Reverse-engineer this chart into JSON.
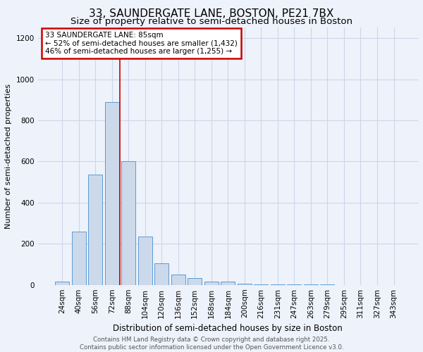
{
  "title1": "33, SAUNDERGATE LANE, BOSTON, PE21 7BX",
  "title2": "Size of property relative to semi-detached houses in Boston",
  "xlabel": "Distribution of semi-detached houses by size in Boston",
  "ylabel": "Number of semi-detached properties",
  "categories": [
    "24sqm",
    "40sqm",
    "56sqm",
    "72sqm",
    "88sqm",
    "104sqm",
    "120sqm",
    "136sqm",
    "152sqm",
    "168sqm",
    "184sqm",
    "200sqm",
    "216sqm",
    "231sqm",
    "247sqm",
    "263sqm",
    "279sqm",
    "295sqm",
    "311sqm",
    "327sqm",
    "343sqm"
  ],
  "values": [
    15,
    260,
    535,
    890,
    600,
    235,
    105,
    50,
    35,
    15,
    15,
    5,
    3,
    2,
    1,
    1,
    1,
    0,
    0,
    0,
    0
  ],
  "bar_color": "#ccd9ea",
  "bar_edge_color": "#5b9bd5",
  "red_line_x": 3.5,
  "annotation_title": "33 SAUNDERGATE LANE: 85sqm",
  "annotation_line1": "← 52% of semi-detached houses are smaller (1,432)",
  "annotation_line2": "46% of semi-detached houses are larger (1,255) →",
  "annotation_box_color": "#ffffff",
  "annotation_box_edge": "#cc0000",
  "footer1": "Contains HM Land Registry data © Crown copyright and database right 2025.",
  "footer2": "Contains public sector information licensed under the Open Government Licence v3.0.",
  "ylim": [
    0,
    1250
  ],
  "yticks": [
    0,
    200,
    400,
    600,
    800,
    1000,
    1200
  ],
  "grid_color": "#ccd6e8",
  "background_color": "#eef2fb",
  "title1_fontsize": 11,
  "title2_fontsize": 9.5
}
